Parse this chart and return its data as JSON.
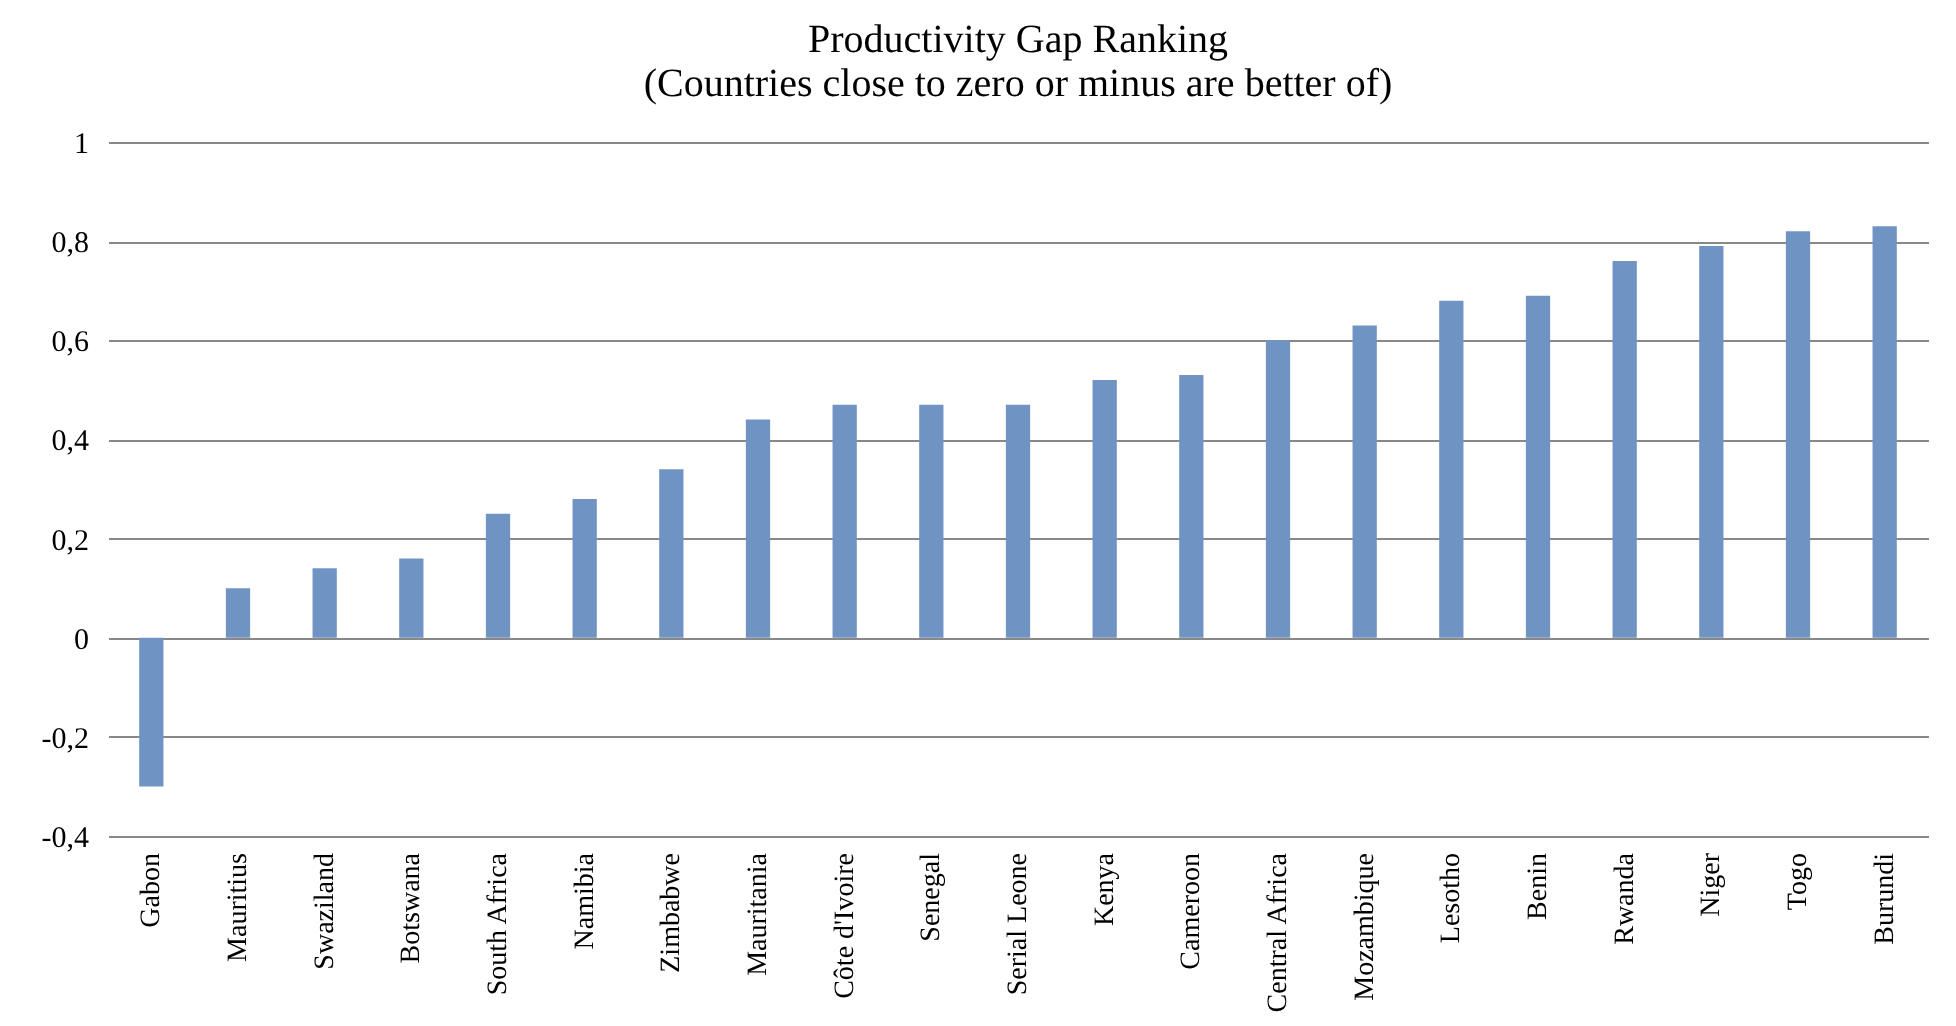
{
  "chart_data": {
    "type": "bar",
    "title": [
      "Productivity Gap Ranking",
      "(Countries close to zero or minus are better of)"
    ],
    "categories": [
      "Gabon",
      "Mauritius",
      "Swaziland",
      "Botswana",
      "South Africa",
      "Namibia",
      "Zimbabwe",
      "Mauritania",
      "Côte d'Ivoire",
      "Senegal",
      "Serial Leone",
      "Kenya",
      "Cameroon",
      "Central Africa",
      "Mozambique",
      "Lesotho",
      "Benin",
      "Rwanda",
      "Niger",
      "Togo",
      "Burundi"
    ],
    "values": [
      -0.3,
      0.1,
      0.14,
      0.16,
      0.25,
      0.28,
      0.34,
      0.44,
      0.47,
      0.47,
      0.47,
      0.52,
      0.53,
      0.6,
      0.63,
      0.68,
      0.69,
      0.76,
      0.79,
      0.82,
      0.83
    ],
    "color": "#6f94c3",
    "ylim": [
      -0.4,
      1
    ],
    "yticks": [
      {
        "value": -0.4,
        "label": "-0,4"
      },
      {
        "value": -0.2,
        "label": "-0,2"
      },
      {
        "value": 0,
        "label": "0"
      },
      {
        "value": 0.2,
        "label": "0,2"
      },
      {
        "value": 0.4,
        "label": "0,4"
      },
      {
        "value": 0.6,
        "label": "0,6"
      },
      {
        "value": 0.8,
        "label": "0,8"
      },
      {
        "value": 1,
        "label": "1"
      }
    ],
    "grid": "y"
  }
}
